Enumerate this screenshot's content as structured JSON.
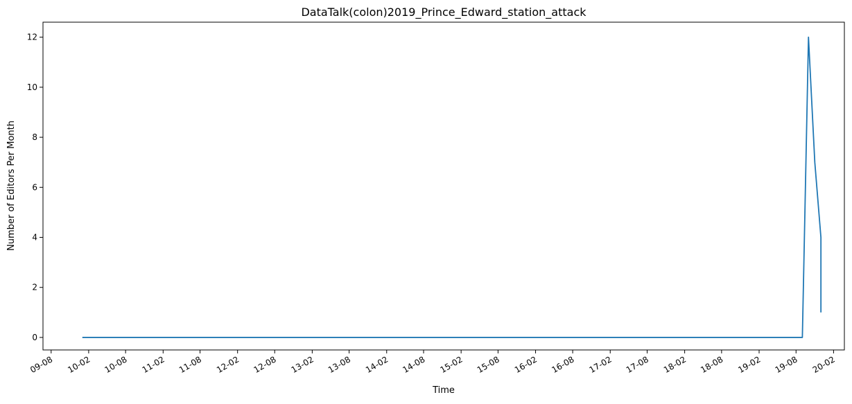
{
  "chart_data": {
    "type": "line",
    "title": "DataTalk(colon)2019_Prince_Edward_station_attack",
    "xlabel": "Time",
    "ylabel": "Number of Editors Per Month",
    "ylim": [
      -0.5,
      12.6
    ],
    "yticks": [
      0,
      2,
      4,
      6,
      8,
      10,
      12
    ],
    "xlim": [
      "2009-06-22",
      "2020-03-25"
    ],
    "xticks": [
      {
        "date": "2009-08-01",
        "label": "09-08"
      },
      {
        "date": "2010-02-01",
        "label": "10-02"
      },
      {
        "date": "2010-08-01",
        "label": "10-08"
      },
      {
        "date": "2011-02-01",
        "label": "11-02"
      },
      {
        "date": "2011-08-01",
        "label": "11-08"
      },
      {
        "date": "2012-02-01",
        "label": "12-02"
      },
      {
        "date": "2012-08-01",
        "label": "12-08"
      },
      {
        "date": "2013-02-01",
        "label": "13-02"
      },
      {
        "date": "2013-08-01",
        "label": "13-08"
      },
      {
        "date": "2014-02-01",
        "label": "14-02"
      },
      {
        "date": "2014-08-01",
        "label": "14-08"
      },
      {
        "date": "2015-02-01",
        "label": "15-02"
      },
      {
        "date": "2015-08-01",
        "label": "15-08"
      },
      {
        "date": "2016-02-01",
        "label": "16-02"
      },
      {
        "date": "2016-08-01",
        "label": "16-08"
      },
      {
        "date": "2017-02-01",
        "label": "17-02"
      },
      {
        "date": "2017-08-01",
        "label": "17-08"
      },
      {
        "date": "2018-02-01",
        "label": "18-02"
      },
      {
        "date": "2018-08-01",
        "label": "18-08"
      },
      {
        "date": "2019-02-01",
        "label": "19-02"
      },
      {
        "date": "2019-08-01",
        "label": "19-08"
      },
      {
        "date": "2020-02-01",
        "label": "20-02"
      }
    ],
    "series": [
      {
        "color": "#1f77b4",
        "x": [
          "2010-01-01",
          "2019-09-01",
          "2019-10-01",
          "2019-11-01",
          "2019-12-01",
          "2019-12-01"
        ],
        "y": [
          0,
          0,
          12,
          7,
          4,
          1
        ]
      }
    ],
    "grid": false,
    "legend": "none"
  }
}
